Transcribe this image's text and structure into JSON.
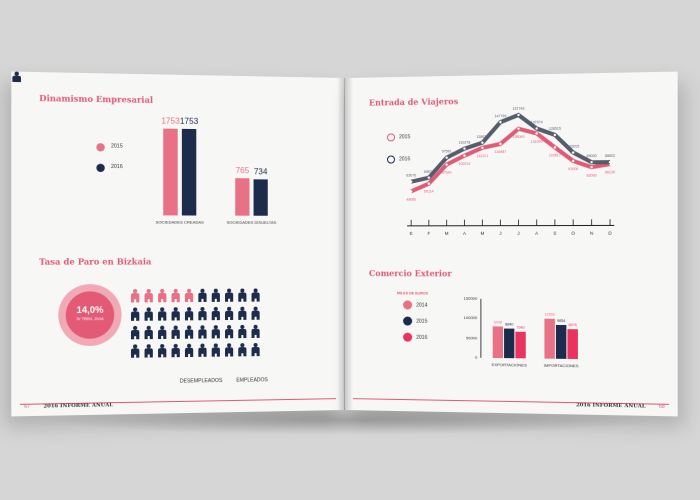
{
  "left_page": {
    "dinamismo": {
      "title": "Dinamismo Empresarial",
      "legend": [
        {
          "label": "2015",
          "color": "#e87186"
        },
        {
          "label": "2016",
          "color": "#1d2c4b"
        }
      ],
      "bars": [
        {
          "category": "SOCIEDADES CREADAS",
          "values": [
            {
              "label": "1753",
              "value": 1753
            },
            {
              "label": "1753",
              "value": 1753
            }
          ]
        },
        {
          "category": "SOCIEDADES DISUELTAS",
          "values": [
            {
              "label": "765",
              "value": 765
            },
            {
              "label": "734",
              "value": 734
            }
          ]
        }
      ]
    },
    "paro": {
      "title": "Tasa de Paro en Bizkaia",
      "rate": "14,0%",
      "rate_sub": "IV TRIM. 2016",
      "legend_unemployed": "DESEMPLEADOS",
      "legend_employed": "EMPLEADOS",
      "rows": 4,
      "cols": 10,
      "unemployed_in_first_row": 5
    },
    "footer": {
      "page": "67",
      "title": "2016 INFORME ANUAL"
    }
  },
  "right_page": {
    "viajeros": {
      "title": "Entrada de Viajeros",
      "legend": [
        {
          "label": "2015",
          "color": "#e25a76"
        },
        {
          "label": "2016",
          "color": "#1d2c4b"
        }
      ],
      "months": [
        "E",
        "F",
        "M",
        "A",
        "M",
        "J",
        "J",
        "A",
        "S",
        "O",
        "N",
        "D"
      ],
      "series_2016": [
        63076,
        68874,
        97581,
        110278,
        118635,
        147799,
        157749,
        137974,
        128515,
        103015,
        89000,
        88802
      ],
      "series_2015": [
        49060,
        60114,
        87540,
        100214,
        111221,
        116487,
        138000,
        131000,
        110617,
        91000,
        82000,
        86230
      ]
    },
    "comercio": {
      "title": "Comercio Exterior",
      "unit_label": "MILES DE EUROS",
      "legend": [
        {
          "label": "2014",
          "color": "#e87186"
        },
        {
          "label": "2015",
          "color": "#1d2c4b"
        },
        {
          "label": "2016",
          "color": "#e8345f"
        }
      ],
      "y_ticks": [
        "150000",
        "100000",
        "50000",
        "0"
      ],
      "groups": [
        {
          "category": "EXPORTACIONES",
          "values": [
            {
              "label": "9438",
              "value": 9438
            },
            {
              "label": "8840",
              "value": 8840
            },
            {
              "label": "7940",
              "value": 7940
            }
          ]
        },
        {
          "category": "IMPORTACIONES",
          "values": [
            {
              "label": "11555",
              "value": 11555
            },
            {
              "label": "9854",
              "value": 9854
            },
            {
              "label": "8576",
              "value": 8576
            }
          ]
        }
      ]
    },
    "footer": {
      "page": "68",
      "title": "2016 INFORME ANUAL"
    }
  }
}
